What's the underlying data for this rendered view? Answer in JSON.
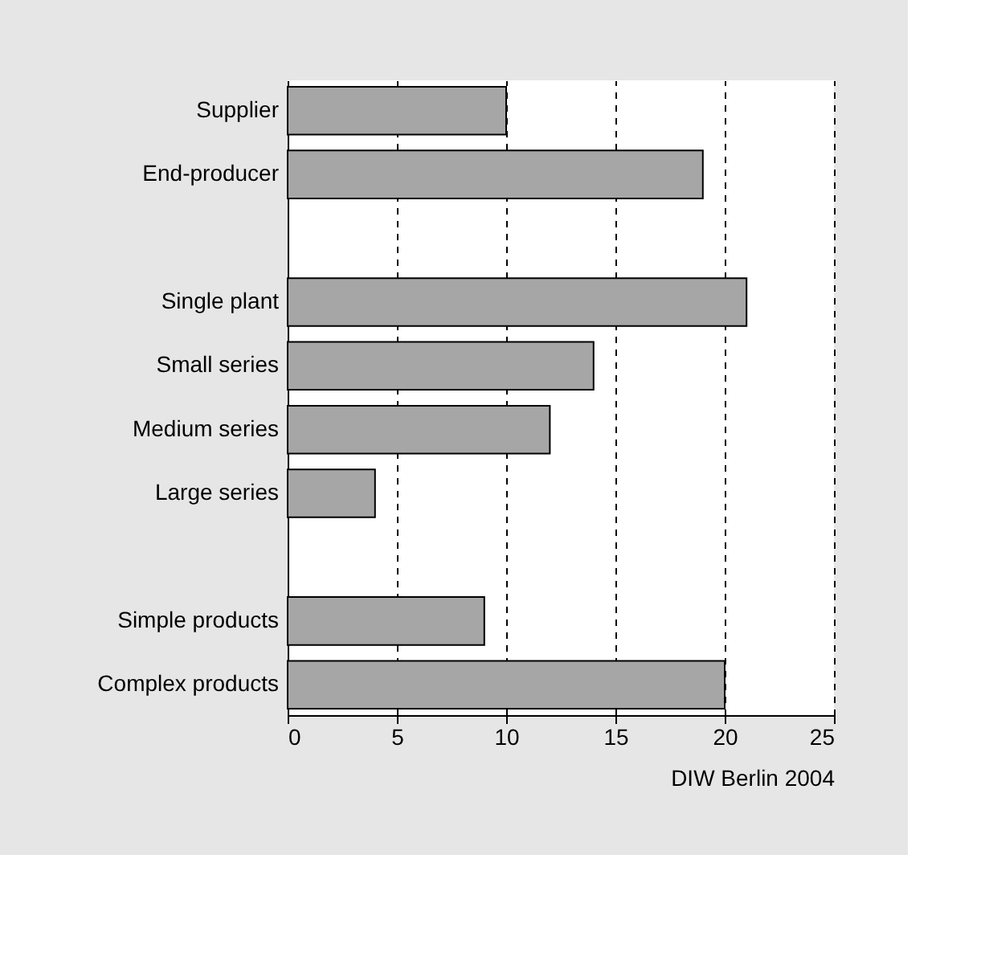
{
  "chart_data": {
    "type": "bar",
    "orientation": "horizontal",
    "categories": [
      "Supplier",
      "End-producer",
      null,
      "Single plant",
      "Small series",
      "Medium series",
      "Large series",
      null,
      "Simple products",
      "Complex products"
    ],
    "values": [
      10,
      19,
      null,
      21,
      14,
      12,
      4,
      null,
      9,
      20
    ],
    "color": "#a6a6a6",
    "xlim": [
      0,
      25
    ],
    "xticks": [
      0,
      5,
      10,
      15,
      20,
      25
    ],
    "grid": "x",
    "annotations": [
      "DIW Berlin 2004"
    ]
  }
}
